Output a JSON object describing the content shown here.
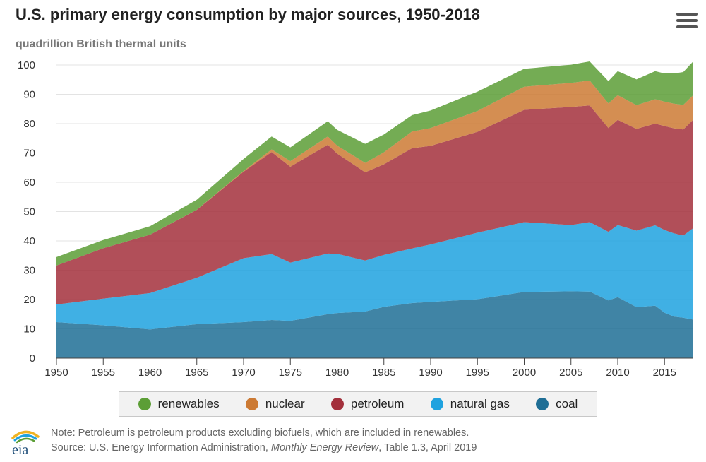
{
  "header": {
    "title": "U.S. primary energy consumption by major sources, 1950-2018",
    "subtitle": "quadrillion British thermal units"
  },
  "legend": [
    {
      "label": "renewables",
      "color": "#5c9e36"
    },
    {
      "label": "nuclear",
      "color": "#cc7a34"
    },
    {
      "label": "petroleum",
      "color": "#a3303c"
    },
    {
      "label": "natural gas",
      "color": "#1fa2df"
    },
    {
      "label": "coal",
      "color": "#1f6e95"
    }
  ],
  "footer": {
    "logo_text": "eia",
    "note": "Note: Petroleum is petroleum products excluding biofuels, which are included in renewables.",
    "source_prefix": "Source: U.S. Energy Information Administration, ",
    "source_publication": "Monthly Energy Review",
    "source_suffix": ", Table 1.3, April 2019"
  },
  "chart_data": {
    "type": "area",
    "stacked": true,
    "title": "U.S. primary energy consumption by major sources, 1950-2018",
    "ylabel": "quadrillion British thermal units",
    "xlabel": "",
    "xlim": [
      1950,
      2018
    ],
    "ylim": [
      0,
      100
    ],
    "x_ticks": [
      1950,
      1955,
      1960,
      1965,
      1970,
      1975,
      1980,
      1985,
      1990,
      1995,
      2000,
      2005,
      2010,
      2015
    ],
    "y_ticks": [
      0,
      10,
      20,
      30,
      40,
      50,
      60,
      70,
      80,
      90,
      100
    ],
    "grid": "horizontal",
    "legend_position": "bottom",
    "x": [
      1950,
      1955,
      1960,
      1965,
      1970,
      1973,
      1975,
      1979,
      1980,
      1983,
      1985,
      1988,
      1990,
      1995,
      2000,
      2005,
      2007,
      2009,
      2010,
      2012,
      2014,
      2015,
      2016,
      2017,
      2018
    ],
    "series": [
      {
        "name": "coal",
        "values": [
          12.3,
          11.2,
          9.8,
          11.6,
          12.3,
          13.0,
          12.7,
          15.0,
          15.4,
          15.9,
          17.5,
          18.8,
          19.2,
          20.1,
          22.6,
          22.8,
          22.7,
          19.7,
          20.8,
          17.4,
          17.9,
          15.5,
          14.2,
          13.8,
          13.2
        ]
      },
      {
        "name": "natural gas",
        "values": [
          6.0,
          9.1,
          12.4,
          15.8,
          21.8,
          22.5,
          19.9,
          20.7,
          20.2,
          17.4,
          17.7,
          18.6,
          19.6,
          22.7,
          23.8,
          22.6,
          23.7,
          23.4,
          24.6,
          26.1,
          27.4,
          28.2,
          28.4,
          28.0,
          31.0
        ]
      },
      {
        "name": "petroleum",
        "values": [
          13.3,
          17.2,
          19.9,
          23.2,
          29.5,
          34.8,
          32.7,
          37.1,
          34.2,
          30.1,
          30.9,
          34.2,
          33.6,
          34.4,
          38.3,
          40.3,
          39.8,
          35.4,
          35.9,
          34.7,
          34.7,
          35.5,
          35.8,
          36.2,
          36.9
        ]
      },
      {
        "name": "nuclear",
        "values": [
          0.0,
          0.0,
          0.0,
          0.04,
          0.24,
          0.91,
          1.9,
          2.8,
          2.7,
          3.2,
          4.1,
          5.7,
          6.1,
          7.1,
          7.9,
          8.2,
          8.5,
          8.4,
          8.4,
          8.1,
          8.3,
          8.3,
          8.4,
          8.4,
          8.4
        ]
      },
      {
        "name": "renewables",
        "values": [
          2.9,
          2.8,
          2.9,
          3.4,
          4.1,
          4.4,
          4.7,
          5.2,
          5.4,
          6.5,
          6.1,
          5.6,
          6.0,
          6.6,
          6.1,
          6.2,
          6.5,
          7.6,
          8.2,
          8.8,
          9.6,
          9.6,
          10.3,
          11.2,
          11.5
        ]
      }
    ]
  }
}
